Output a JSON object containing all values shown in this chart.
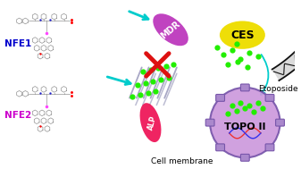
{
  "figsize": [
    3.37,
    1.89
  ],
  "dpi": 100,
  "bg_color": "#ffffff",
  "nfe1_label": "NFE1",
  "nfe1_color": "#0000cc",
  "nfe2_label": "NFE2",
  "nfe2_color": "#cc00cc",
  "mdr_label": "MDR",
  "mdr_color": "#bb33bb",
  "ces_label": "CES",
  "ces_color": "#eedd00",
  "topo_label": "TOPO II",
  "topo_color": "#cc99dd",
  "etoposide_label": "Etoposide",
  "alp_label": "ALP",
  "alp_color": "#ee1155",
  "cell_membrane_label": "Cell membrane",
  "membrane_color": "#111111",
  "nanofiber_color": "#9999bb",
  "dot_color": "#22ee00",
  "arrow_color": "#00cccc",
  "cross_color": "#dd1111",
  "mol_color": "#888888",
  "mol_red": "#ff0000",
  "mol_blue": "#2222cc",
  "mol_pink": "#ff44ff",
  "mol_cyan": "#44aacc"
}
